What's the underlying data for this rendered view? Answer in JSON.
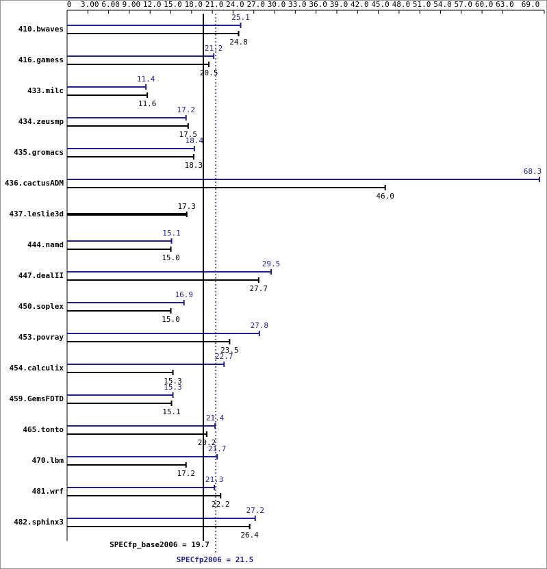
{
  "chart_data": {
    "type": "bar",
    "orientation": "horizontal",
    "categories": [
      "410.bwaves",
      "416.gamess",
      "433.milc",
      "434.zeusmp",
      "435.gromacs",
      "436.cactusADM",
      "437.leslie3d",
      "444.namd",
      "447.dealII",
      "450.soplex",
      "453.povray",
      "454.calculix",
      "459.GemsFDTD",
      "465.tonto",
      "470.lbm",
      "481.wrf",
      "482.sphinx3"
    ],
    "series": [
      {
        "color": "#1f1f8f",
        "values": [
          25.1,
          21.2,
          11.4,
          17.2,
          18.4,
          68.3,
          null,
          15.1,
          29.5,
          16.9,
          27.8,
          22.7,
          15.3,
          21.4,
          21.7,
          21.3,
          27.2
        ],
        "value_labels": [
          "25.1",
          "21.2",
          "11.4",
          "17.2",
          "18.4",
          "68.3",
          null,
          "15.1",
          "29.5",
          "16.9",
          "27.8",
          "22.7",
          "15.3",
          "21.4",
          "21.7",
          "21.3",
          "27.2"
        ]
      },
      {
        "color": "#000000",
        "values": [
          24.8,
          20.5,
          11.6,
          17.5,
          18.3,
          46.0,
          17.3,
          15.0,
          27.7,
          15.0,
          23.5,
          15.3,
          15.1,
          20.2,
          17.2,
          22.2,
          26.4
        ],
        "value_labels": [
          "24.8",
          "20.5",
          "11.6",
          "17.5",
          "18.3",
          "46.0",
          "17.3",
          "15.0",
          "27.7",
          "15.0",
          "23.5",
          "15.3",
          "15.1",
          "20.2",
          "17.2",
          "22.2",
          "26.4"
        ]
      }
    ],
    "xlim": [
      0,
      69
    ],
    "xticks": [
      0,
      {
        "value": 3,
        "label": "3.00"
      },
      {
        "value": 6,
        "label": "6.00"
      },
      {
        "value": 9,
        "label": "9.00"
      },
      {
        "value": 12,
        "label": "12.0"
      },
      {
        "value": 15,
        "label": "15.0"
      },
      {
        "value": 18,
        "label": "18.0"
      },
      {
        "value": 21,
        "label": "21.0"
      },
      {
        "value": 24,
        "label": "24.0"
      },
      {
        "value": 27,
        "label": "27.0"
      },
      {
        "value": 30,
        "label": "30.0"
      },
      {
        "value": 33,
        "label": "33.0"
      },
      {
        "value": 36,
        "label": "36.0"
      },
      {
        "value": 39,
        "label": "39.0"
      },
      {
        "value": 42,
        "label": "42.0"
      },
      {
        "value": 45,
        "label": "45.0"
      },
      {
        "value": 48,
        "label": "48.0"
      },
      {
        "value": 51,
        "label": "51.0"
      },
      {
        "value": 54,
        "label": "54.0"
      },
      {
        "value": 57,
        "label": "57.0"
      },
      {
        "value": 60,
        "label": "60.0"
      },
      {
        "value": 63,
        "label": "63.0"
      },
      {
        "value": 69,
        "label": "69.0"
      }
    ],
    "reference_lines": [
      {
        "label": "SPECfp_base2006 = 19.7",
        "value": 19.7,
        "color": "#000000",
        "dashed": false
      },
      {
        "label": "SPECfp2006 = 21.5",
        "value": 21.5,
        "color": "#1f1f8f",
        "dashed": true
      }
    ]
  }
}
